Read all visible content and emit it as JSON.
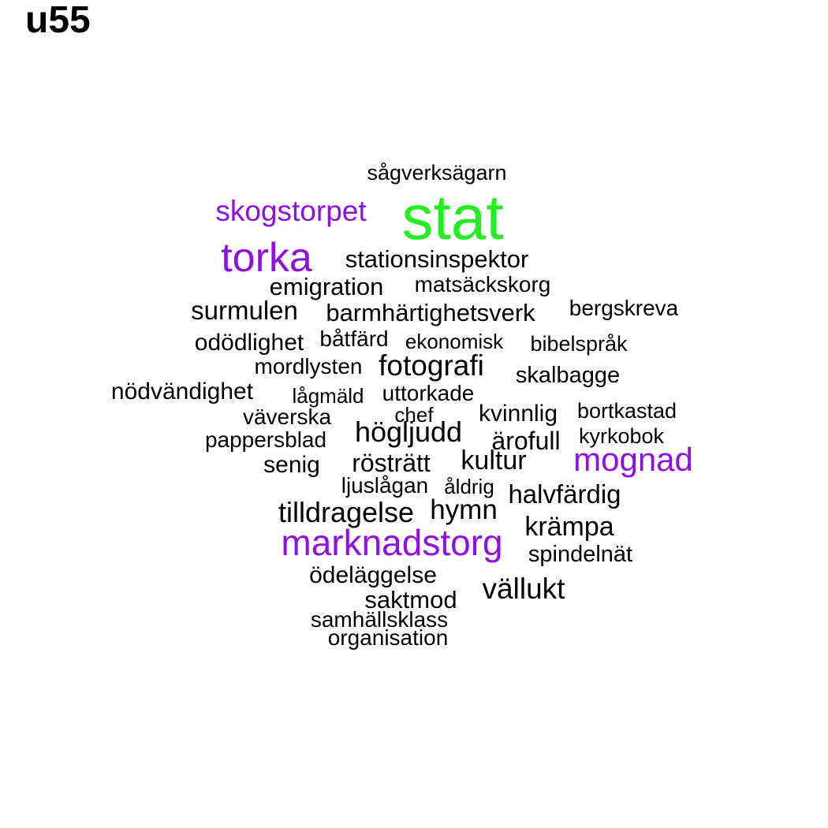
{
  "title": "u55",
  "colors": {
    "green": "#22ee22",
    "purple": "#8f10e0",
    "black": "#000000"
  },
  "words": [
    {
      "text": "sågverksägarn",
      "color": "black"
    },
    {
      "text": "stat",
      "color": "green"
    },
    {
      "text": "skogstorpet",
      "color": "purple"
    },
    {
      "text": "torka",
      "color": "purple"
    },
    {
      "text": "stationsinspektor",
      "color": "black"
    },
    {
      "text": "emigration",
      "color": "black"
    },
    {
      "text": "matsäckskorg",
      "color": "black"
    },
    {
      "text": "surmulen",
      "color": "black"
    },
    {
      "text": "barmhärtighetsverk",
      "color": "black"
    },
    {
      "text": "bergskreva",
      "color": "black"
    },
    {
      "text": "odödlighet",
      "color": "black"
    },
    {
      "text": "båtfärd",
      "color": "black"
    },
    {
      "text": "ekonomisk",
      "color": "black"
    },
    {
      "text": "bibelspråk",
      "color": "black"
    },
    {
      "text": "mordlysten",
      "color": "black"
    },
    {
      "text": "fotografi",
      "color": "black"
    },
    {
      "text": "skalbagge",
      "color": "black"
    },
    {
      "text": "nödvändighet",
      "color": "black"
    },
    {
      "text": "lågmäld",
      "color": "black"
    },
    {
      "text": "uttorkade",
      "color": "black"
    },
    {
      "text": "väverska",
      "color": "black"
    },
    {
      "text": "chef",
      "color": "black"
    },
    {
      "text": "kvinnlig",
      "color": "black"
    },
    {
      "text": "bortkastad",
      "color": "black"
    },
    {
      "text": "högljudd",
      "color": "black"
    },
    {
      "text": "pappersblad",
      "color": "black"
    },
    {
      "text": "ärofull",
      "color": "black"
    },
    {
      "text": "kyrkobok",
      "color": "black"
    },
    {
      "text": "senig",
      "color": "black"
    },
    {
      "text": "rösträtt",
      "color": "black"
    },
    {
      "text": "kultur",
      "color": "black"
    },
    {
      "text": "mognad",
      "color": "purple"
    },
    {
      "text": "ljuslågan",
      "color": "black"
    },
    {
      "text": "åldrig",
      "color": "black"
    },
    {
      "text": "halvfärdig",
      "color": "black"
    },
    {
      "text": "tilldragelse",
      "color": "black"
    },
    {
      "text": "hymn",
      "color": "black"
    },
    {
      "text": "krämpa",
      "color": "black"
    },
    {
      "text": "marknadstorg",
      "color": "purple"
    },
    {
      "text": "spindelnät",
      "color": "black"
    },
    {
      "text": "ödeläggelse",
      "color": "black"
    },
    {
      "text": "vällukt",
      "color": "black"
    },
    {
      "text": "saktmod",
      "color": "black"
    },
    {
      "text": "samhällsklass",
      "color": "black"
    },
    {
      "text": "organisation",
      "color": "black"
    }
  ]
}
